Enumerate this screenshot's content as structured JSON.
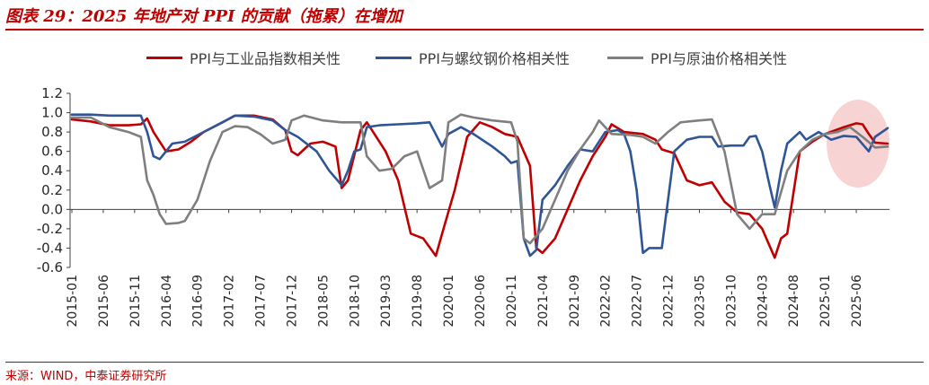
{
  "header": {
    "title": "图表 29：2025 年地产对 PPI 的贡献（拖累）在增加"
  },
  "footer": {
    "source": "来源：WIND，中泰证券研究所"
  },
  "colors": {
    "red": "#c00000",
    "blue": "#2f5597",
    "gray": "#7f7f7f",
    "highlight": "#f4b6b6"
  },
  "chart_data": {
    "type": "line",
    "title": "",
    "xlabel": "",
    "ylabel": "",
    "ylim": [
      -0.6,
      1.2
    ],
    "yticks": [
      "1.2",
      "1.0",
      "0.8",
      "0.6",
      "0.4",
      "0.2",
      "0.0",
      "-0.2",
      "-0.4",
      "-0.6"
    ],
    "xticks": [
      "2015-01",
      "2015-06",
      "2015-11",
      "2016-04",
      "2016-09",
      "2017-02",
      "2017-07",
      "2017-12",
      "2018-05",
      "2018-10",
      "2019-03",
      "2019-08",
      "2020-01",
      "2020-06",
      "2020-11",
      "2021-04",
      "2021-09",
      "2022-02",
      "2022-07",
      "2022-12",
      "2023-05",
      "2023-10",
      "2024-03",
      "2024-08",
      "2025-01",
      "2025-06"
    ],
    "legend_position": "top",
    "grid": false,
    "annotation": "highlight ellipse around 2025-06 to 2025-09",
    "series": [
      {
        "name": "PPI与工业品指数相关性",
        "color": "#c00000",
        "points": [
          [
            "2015-01",
            0.93
          ],
          [
            "2015-04",
            0.91
          ],
          [
            "2015-07",
            0.87
          ],
          [
            "2015-10",
            0.87
          ],
          [
            "2015-12",
            0.88
          ],
          [
            "2016-01",
            0.94
          ],
          [
            "2016-02",
            0.8
          ],
          [
            "2016-03",
            0.7
          ],
          [
            "2016-04",
            0.6
          ],
          [
            "2016-06",
            0.62
          ],
          [
            "2016-08",
            0.7
          ],
          [
            "2016-10",
            0.8
          ],
          [
            "2017-01",
            0.9
          ],
          [
            "2017-03",
            0.97
          ],
          [
            "2017-06",
            0.97
          ],
          [
            "2017-09",
            0.93
          ],
          [
            "2017-11",
            0.82
          ],
          [
            "2017-12",
            0.6
          ],
          [
            "2018-01",
            0.56
          ],
          [
            "2018-03",
            0.68
          ],
          [
            "2018-05",
            0.7
          ],
          [
            "2018-07",
            0.65
          ],
          [
            "2018-08",
            0.22
          ],
          [
            "2018-09",
            0.3
          ],
          [
            "2018-11",
            0.82
          ],
          [
            "2018-12",
            0.9
          ],
          [
            "2019-01",
            0.8
          ],
          [
            "2019-03",
            0.6
          ],
          [
            "2019-05",
            0.3
          ],
          [
            "2019-07",
            -0.25
          ],
          [
            "2019-09",
            -0.3
          ],
          [
            "2019-11",
            -0.48
          ],
          [
            "2019-12",
            -0.25
          ],
          [
            "2020-02",
            0.2
          ],
          [
            "2020-04",
            0.75
          ],
          [
            "2020-06",
            0.9
          ],
          [
            "2020-08",
            0.85
          ],
          [
            "2020-10",
            0.78
          ],
          [
            "2020-12",
            0.75
          ],
          [
            "2021-02",
            0.45
          ],
          [
            "2021-03",
            -0.4
          ],
          [
            "2021-04",
            -0.45
          ],
          [
            "2021-06",
            -0.3
          ],
          [
            "2021-08",
            0.0
          ],
          [
            "2021-10",
            0.3
          ],
          [
            "2021-12",
            0.55
          ],
          [
            "2022-02",
            0.75
          ],
          [
            "2022-03",
            0.88
          ],
          [
            "2022-05",
            0.8
          ],
          [
            "2022-08",
            0.78
          ],
          [
            "2022-10",
            0.72
          ],
          [
            "2022-11",
            0.62
          ],
          [
            "2023-01",
            0.58
          ],
          [
            "2023-03",
            0.3
          ],
          [
            "2023-05",
            0.25
          ],
          [
            "2023-07",
            0.28
          ],
          [
            "2023-09",
            0.08
          ],
          [
            "2023-11",
            -0.03
          ],
          [
            "2024-01",
            -0.05
          ],
          [
            "2024-03",
            -0.2
          ],
          [
            "2024-05",
            -0.5
          ],
          [
            "2024-06",
            -0.3
          ],
          [
            "2024-07",
            -0.25
          ],
          [
            "2024-09",
            0.6
          ],
          [
            "2024-11",
            0.7
          ],
          [
            "2025-01",
            0.78
          ],
          [
            "2025-04",
            0.85
          ],
          [
            "2025-06",
            0.89
          ],
          [
            "2025-07",
            0.88
          ],
          [
            "2025-08",
            0.78
          ],
          [
            "2025-09",
            0.69
          ],
          [
            "2025-11",
            0.68
          ]
        ]
      },
      {
        "name": "PPI与螺纹钢价格相关性",
        "color": "#2f5597",
        "points": [
          [
            "2015-01",
            0.98
          ],
          [
            "2015-04",
            0.98
          ],
          [
            "2015-07",
            0.97
          ],
          [
            "2015-10",
            0.97
          ],
          [
            "2015-12",
            0.97
          ],
          [
            "2016-01",
            0.8
          ],
          [
            "2016-02",
            0.55
          ],
          [
            "2016-03",
            0.52
          ],
          [
            "2016-05",
            0.68
          ],
          [
            "2016-07",
            0.7
          ],
          [
            "2016-10",
            0.8
          ],
          [
            "2017-01",
            0.9
          ],
          [
            "2017-03",
            0.97
          ],
          [
            "2017-06",
            0.96
          ],
          [
            "2017-09",
            0.92
          ],
          [
            "2017-11",
            0.82
          ],
          [
            "2018-01",
            0.75
          ],
          [
            "2018-04",
            0.6
          ],
          [
            "2018-06",
            0.4
          ],
          [
            "2018-08",
            0.25
          ],
          [
            "2018-09",
            0.4
          ],
          [
            "2018-10",
            0.6
          ],
          [
            "2018-11",
            0.62
          ],
          [
            "2018-12",
            0.85
          ],
          [
            "2019-02",
            0.87
          ],
          [
            "2019-05",
            0.88
          ],
          [
            "2019-08",
            0.89
          ],
          [
            "2019-10",
            0.9
          ],
          [
            "2019-12",
            0.65
          ],
          [
            "2020-01",
            0.78
          ],
          [
            "2020-03",
            0.85
          ],
          [
            "2020-05",
            0.78
          ],
          [
            "2020-08",
            0.65
          ],
          [
            "2020-10",
            0.55
          ],
          [
            "2020-11",
            0.48
          ],
          [
            "2020-12",
            0.5
          ],
          [
            "2021-01",
            -0.3
          ],
          [
            "2021-02",
            -0.48
          ],
          [
            "2021-03",
            -0.42
          ],
          [
            "2021-04",
            0.1
          ],
          [
            "2021-06",
            0.25
          ],
          [
            "2021-08",
            0.45
          ],
          [
            "2021-10",
            0.62
          ],
          [
            "2021-12",
            0.6
          ],
          [
            "2022-02",
            0.8
          ],
          [
            "2022-04",
            0.82
          ],
          [
            "2022-05",
            0.78
          ],
          [
            "2022-06",
            0.6
          ],
          [
            "2022-07",
            0.2
          ],
          [
            "2022-08",
            -0.45
          ],
          [
            "2022-09",
            -0.4
          ],
          [
            "2022-11",
            -0.4
          ],
          [
            "2023-01",
            0.6
          ],
          [
            "2023-03",
            0.72
          ],
          [
            "2023-05",
            0.75
          ],
          [
            "2023-07",
            0.75
          ],
          [
            "2023-08",
            0.65
          ],
          [
            "2023-10",
            0.66
          ],
          [
            "2023-12",
            0.66
          ],
          [
            "2024-01",
            0.75
          ],
          [
            "2024-02",
            0.76
          ],
          [
            "2024-03",
            0.6
          ],
          [
            "2024-04",
            0.3
          ],
          [
            "2024-05",
            0.02
          ],
          [
            "2024-06",
            0.4
          ],
          [
            "2024-07",
            0.68
          ],
          [
            "2024-09",
            0.8
          ],
          [
            "2024-10",
            0.72
          ],
          [
            "2024-12",
            0.8
          ],
          [
            "2025-02",
            0.72
          ],
          [
            "2025-04",
            0.76
          ],
          [
            "2025-06",
            0.75
          ],
          [
            "2025-08",
            0.6
          ],
          [
            "2025-09",
            0.75
          ],
          [
            "2025-11",
            0.84
          ]
        ]
      },
      {
        "name": "PPI与原油价格相关性",
        "color": "#7f7f7f",
        "points": [
          [
            "2015-01",
            0.95
          ],
          [
            "2015-04",
            0.95
          ],
          [
            "2015-07",
            0.85
          ],
          [
            "2015-10",
            0.8
          ],
          [
            "2015-12",
            0.75
          ],
          [
            "2016-01",
            0.3
          ],
          [
            "2016-02",
            0.15
          ],
          [
            "2016-03",
            -0.05
          ],
          [
            "2016-04",
            -0.15
          ],
          [
            "2016-06",
            -0.14
          ],
          [
            "2016-07",
            -0.12
          ],
          [
            "2016-09",
            0.1
          ],
          [
            "2016-11",
            0.5
          ],
          [
            "2017-01",
            0.8
          ],
          [
            "2017-03",
            0.86
          ],
          [
            "2017-05",
            0.85
          ],
          [
            "2017-07",
            0.78
          ],
          [
            "2017-09",
            0.68
          ],
          [
            "2017-11",
            0.72
          ],
          [
            "2017-12",
            0.92
          ],
          [
            "2018-02",
            0.97
          ],
          [
            "2018-05",
            0.92
          ],
          [
            "2018-08",
            0.9
          ],
          [
            "2018-11",
            0.9
          ],
          [
            "2018-12",
            0.55
          ],
          [
            "2019-02",
            0.4
          ],
          [
            "2019-04",
            0.42
          ],
          [
            "2019-06",
            0.55
          ],
          [
            "2019-08",
            0.6
          ],
          [
            "2019-10",
            0.22
          ],
          [
            "2019-12",
            0.3
          ],
          [
            "2020-01",
            0.9
          ],
          [
            "2020-03",
            0.98
          ],
          [
            "2020-05",
            0.95
          ],
          [
            "2020-08",
            0.92
          ],
          [
            "2020-11",
            0.9
          ],
          [
            "2020-12",
            0.7
          ],
          [
            "2021-01",
            -0.3
          ],
          [
            "2021-02",
            -0.35
          ],
          [
            "2021-04",
            -0.2
          ],
          [
            "2021-06",
            0.1
          ],
          [
            "2021-08",
            0.4
          ],
          [
            "2021-10",
            0.62
          ],
          [
            "2021-12",
            0.8
          ],
          [
            "2022-01",
            0.92
          ],
          [
            "2022-03",
            0.78
          ],
          [
            "2022-06",
            0.77
          ],
          [
            "2022-08",
            0.75
          ],
          [
            "2022-10",
            0.68
          ],
          [
            "2022-12",
            0.8
          ],
          [
            "2023-02",
            0.9
          ],
          [
            "2023-05",
            0.92
          ],
          [
            "2023-07",
            0.93
          ],
          [
            "2023-09",
            0.6
          ],
          [
            "2023-11",
            -0.05
          ],
          [
            "2024-01",
            -0.2
          ],
          [
            "2024-03",
            -0.05
          ],
          [
            "2024-05",
            -0.05
          ],
          [
            "2024-07",
            0.4
          ],
          [
            "2024-09",
            0.6
          ],
          [
            "2024-11",
            0.72
          ],
          [
            "2025-01",
            0.78
          ],
          [
            "2025-03",
            0.8
          ],
          [
            "2025-05",
            0.85
          ],
          [
            "2025-07",
            0.75
          ],
          [
            "2025-09",
            0.64
          ],
          [
            "2025-11",
            0.65
          ]
        ]
      }
    ]
  }
}
